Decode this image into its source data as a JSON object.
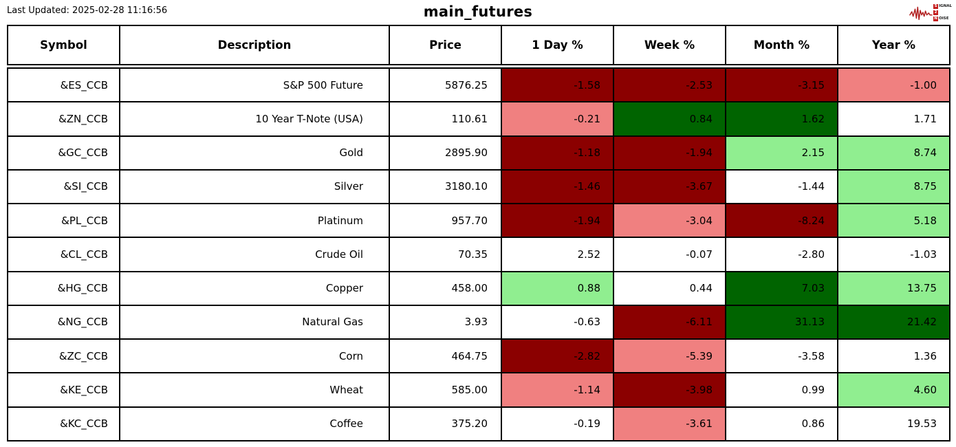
{
  "header": {
    "last_updated": "Last Updated: 2025-02-28 11:16:56",
    "title": "main_futures",
    "logo": {
      "rows": [
        {
          "badge": "S",
          "rest": "IGNAL"
        },
        {
          "badge": "2",
          "rest": ""
        },
        {
          "badge": "N",
          "rest": "OISE"
        }
      ],
      "waveform_color": "#b22222",
      "badge_color": "#c41e1e"
    }
  },
  "colors": {
    "dark_red": "#8b0000",
    "light_red": "#f08080",
    "dark_green": "#006400",
    "light_green": "#90ee90",
    "white": "#ffffff"
  },
  "table": {
    "columns": [
      "Symbol",
      "Description",
      "Price",
      "1 Day %",
      "Week %",
      "Month %",
      "Year %"
    ],
    "rows": [
      {
        "symbol": "&ES_CCB",
        "description": "S&P 500 Future",
        "price": "5876.25",
        "changes": [
          {
            "value": "-1.58",
            "bg": "dark_red"
          },
          {
            "value": "-2.53",
            "bg": "dark_red"
          },
          {
            "value": "-3.15",
            "bg": "dark_red"
          },
          {
            "value": "-1.00",
            "bg": "light_red"
          }
        ]
      },
      {
        "symbol": "&ZN_CCB",
        "description": "10 Year T-Note (USA)",
        "price": "110.61",
        "changes": [
          {
            "value": "-0.21",
            "bg": "light_red"
          },
          {
            "value": "0.84",
            "bg": "dark_green"
          },
          {
            "value": "1.62",
            "bg": "dark_green"
          },
          {
            "value": "1.71",
            "bg": "white"
          }
        ]
      },
      {
        "symbol": "&GC_CCB",
        "description": "Gold",
        "price": "2895.90",
        "changes": [
          {
            "value": "-1.18",
            "bg": "dark_red"
          },
          {
            "value": "-1.94",
            "bg": "dark_red"
          },
          {
            "value": "2.15",
            "bg": "light_green"
          },
          {
            "value": "8.74",
            "bg": "light_green"
          }
        ]
      },
      {
        "symbol": "&SI_CCB",
        "description": "Silver",
        "price": "3180.10",
        "changes": [
          {
            "value": "-1.46",
            "bg": "dark_red"
          },
          {
            "value": "-3.67",
            "bg": "dark_red"
          },
          {
            "value": "-1.44",
            "bg": "white"
          },
          {
            "value": "8.75",
            "bg": "light_green"
          }
        ]
      },
      {
        "symbol": "&PL_CCB",
        "description": "Platinum",
        "price": "957.70",
        "changes": [
          {
            "value": "-1.94",
            "bg": "dark_red"
          },
          {
            "value": "-3.04",
            "bg": "light_red"
          },
          {
            "value": "-8.24",
            "bg": "dark_red"
          },
          {
            "value": "5.18",
            "bg": "light_green"
          }
        ]
      },
      {
        "symbol": "&CL_CCB",
        "description": "Crude Oil",
        "price": "70.35",
        "changes": [
          {
            "value": "2.52",
            "bg": "white"
          },
          {
            "value": "-0.07",
            "bg": "white"
          },
          {
            "value": "-2.80",
            "bg": "white"
          },
          {
            "value": "-1.03",
            "bg": "white"
          }
        ]
      },
      {
        "symbol": "&HG_CCB",
        "description": "Copper",
        "price": "458.00",
        "changes": [
          {
            "value": "0.88",
            "bg": "light_green"
          },
          {
            "value": "0.44",
            "bg": "white"
          },
          {
            "value": "7.03",
            "bg": "dark_green"
          },
          {
            "value": "13.75",
            "bg": "light_green"
          }
        ]
      },
      {
        "symbol": "&NG_CCB",
        "description": "Natural Gas",
        "price": "3.93",
        "changes": [
          {
            "value": "-0.63",
            "bg": "white"
          },
          {
            "value": "-6.11",
            "bg": "dark_red"
          },
          {
            "value": "31.13",
            "bg": "dark_green"
          },
          {
            "value": "21.42",
            "bg": "dark_green"
          }
        ]
      },
      {
        "symbol": "&ZC_CCB",
        "description": "Corn",
        "price": "464.75",
        "changes": [
          {
            "value": "-2.82",
            "bg": "dark_red"
          },
          {
            "value": "-5.39",
            "bg": "light_red"
          },
          {
            "value": "-3.58",
            "bg": "white"
          },
          {
            "value": "1.36",
            "bg": "white"
          }
        ]
      },
      {
        "symbol": "&KE_CCB",
        "description": "Wheat",
        "price": "585.00",
        "changes": [
          {
            "value": "-1.14",
            "bg": "light_red"
          },
          {
            "value": "-3.98",
            "bg": "dark_red"
          },
          {
            "value": "0.99",
            "bg": "white"
          },
          {
            "value": "4.60",
            "bg": "light_green"
          }
        ]
      },
      {
        "symbol": "&KC_CCB",
        "description": "Coffee",
        "price": "375.20",
        "changes": [
          {
            "value": "-0.19",
            "bg": "white"
          },
          {
            "value": "-3.61",
            "bg": "light_red"
          },
          {
            "value": "0.86",
            "bg": "white"
          },
          {
            "value": "19.53",
            "bg": "white"
          }
        ]
      }
    ]
  },
  "chart_data": {
    "type": "table",
    "title": "main_futures",
    "columns": [
      "Symbol",
      "Description",
      "Price",
      "1 Day %",
      "Week %",
      "Month %",
      "Year %"
    ],
    "rows": [
      [
        "&ES_CCB",
        "S&P 500 Future",
        5876.25,
        -1.58,
        -2.53,
        -3.15,
        -1.0
      ],
      [
        "&ZN_CCB",
        "10 Year T-Note (USA)",
        110.61,
        -0.21,
        0.84,
        1.62,
        1.71
      ],
      [
        "&GC_CCB",
        "Gold",
        2895.9,
        -1.18,
        -1.94,
        2.15,
        8.74
      ],
      [
        "&SI_CCB",
        "Silver",
        3180.1,
        -1.46,
        -3.67,
        -1.44,
        8.75
      ],
      [
        "&PL_CCB",
        "Platinum",
        957.7,
        -1.94,
        -3.04,
        -8.24,
        5.18
      ],
      [
        "&CL_CCB",
        "Crude Oil",
        70.35,
        2.52,
        -0.07,
        -2.8,
        -1.03
      ],
      [
        "&HG_CCB",
        "Copper",
        458.0,
        0.88,
        0.44,
        7.03,
        13.75
      ],
      [
        "&NG_CCB",
        "Natural Gas",
        3.93,
        -0.63,
        -6.11,
        31.13,
        21.42
      ],
      [
        "&ZC_CCB",
        "Corn",
        464.75,
        -2.82,
        -5.39,
        -3.58,
        1.36
      ],
      [
        "&KE_CCB",
        "Wheat",
        585.0,
        -1.14,
        -3.98,
        0.99,
        4.6
      ],
      [
        "&KC_CCB",
        "Coffee",
        375.2,
        -0.19,
        -3.61,
        0.86,
        19.53
      ]
    ],
    "cell_color_legend": {
      "dark_red": "strong negative signal",
      "light_red": "mild negative signal",
      "dark_green": "strong positive signal",
      "light_green": "mild positive signal",
      "white": "neutral"
    }
  }
}
